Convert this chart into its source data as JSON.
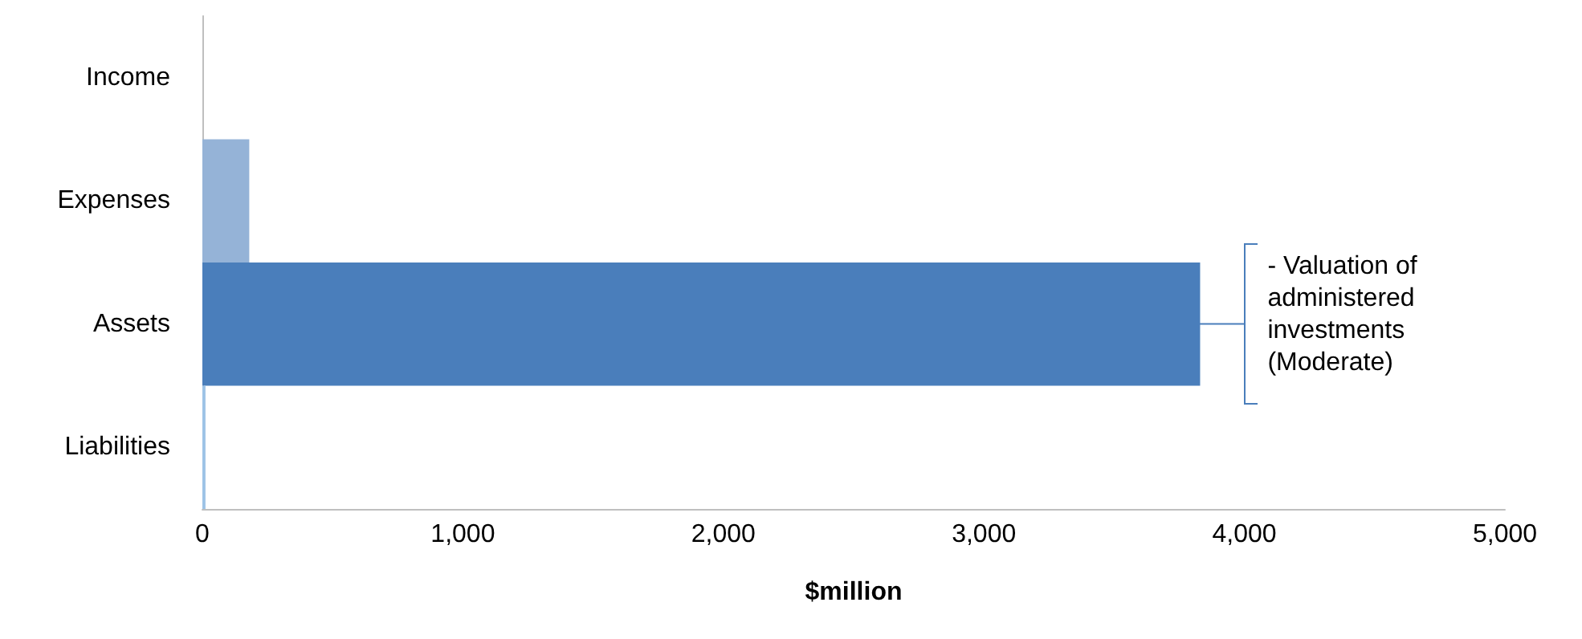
{
  "chart_data": {
    "type": "bar",
    "orientation": "horizontal",
    "categories": [
      "Income",
      "Expenses",
      "Assets",
      "Liabilities"
    ],
    "values": [
      0,
      180,
      3830,
      12
    ],
    "colors": [
      "#4a7ebb",
      "#95b3d7",
      "#4a7ebb",
      "#9dc3e6"
    ],
    "xlabel": "$million",
    "xlim": [
      0,
      5000
    ],
    "xticks": [
      {
        "value": 0,
        "label": "0"
      },
      {
        "value": 1000,
        "label": "1,000"
      },
      {
        "value": 2000,
        "label": "2,000"
      },
      {
        "value": 3000,
        "label": "3,000"
      },
      {
        "value": 4000,
        "label": "4,000"
      },
      {
        "value": 5000,
        "label": "5,000"
      }
    ],
    "grid": false,
    "annotations": [
      {
        "text": "- Valuation of administered investments (Moderate)",
        "x": 3830,
        "y": "Assets"
      }
    ]
  }
}
